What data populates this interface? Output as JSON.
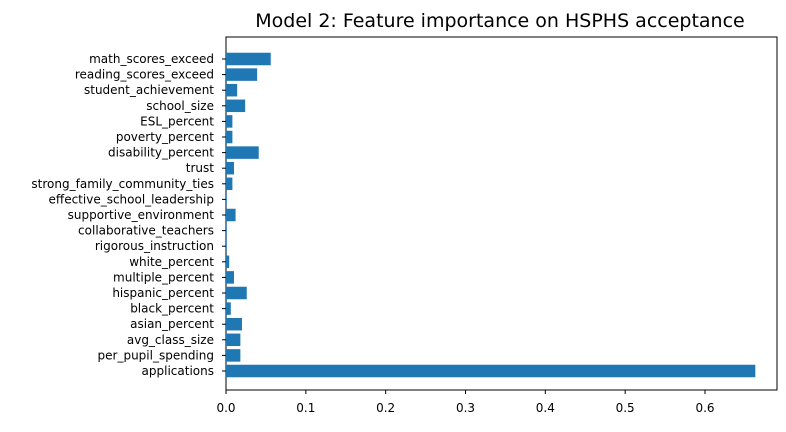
{
  "chart_data": {
    "type": "bar",
    "orientation": "horizontal",
    "title": "Model 2: Feature importance on HSPHS acceptance",
    "xlabel": "",
    "ylabel": "",
    "xlim": [
      0,
      0.7
    ],
    "xticks": [
      "0.0",
      "0.1",
      "0.2",
      "0.3",
      "0.4",
      "0.5",
      "0.6"
    ],
    "grid": false,
    "bar_color": "#1f77b4",
    "categories": [
      "applications",
      "per_pupil_spending",
      "avg_class_size",
      "asian_percent",
      "black_percent",
      "hispanic_percent",
      "multiple_percent",
      "white_percent",
      "rigorous_instruction",
      "collaborative_teachers",
      "supportive_environment",
      "effective_school_leadership",
      "strong_family_community_ties",
      "trust",
      "disability_percent",
      "poverty_percent",
      "ESL_percent",
      "school_size",
      "student_achievement",
      "reading_scores_exceed",
      "math_scores_exceed"
    ],
    "values": [
      0.663,
      0.018,
      0.018,
      0.02,
      0.006,
      0.026,
      0.01,
      0.004,
      0.001,
      0.001,
      0.012,
      0.001,
      0.008,
      0.01,
      0.041,
      0.008,
      0.008,
      0.024,
      0.014,
      0.039,
      0.056
    ]
  }
}
